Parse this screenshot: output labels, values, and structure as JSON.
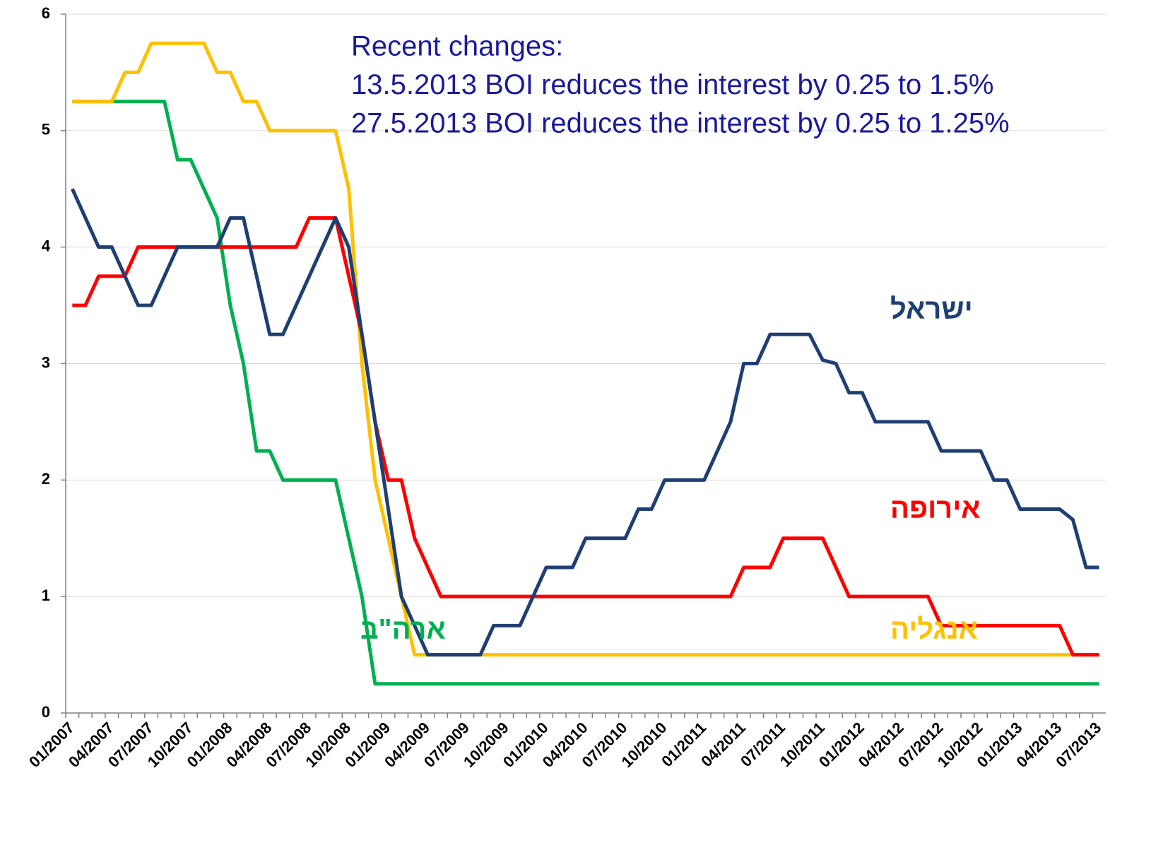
{
  "chart_data": {
    "type": "line",
    "categories": [
      "01/2007",
      null,
      null,
      "04/2007",
      null,
      null,
      "07/2007",
      null,
      null,
      "10/2007",
      null,
      null,
      "01/2008",
      null,
      null,
      "04/2008",
      null,
      null,
      "07/2008",
      null,
      null,
      "10/2008",
      null,
      null,
      "01/2009",
      null,
      null,
      "04/2009",
      null,
      null,
      "07/2009",
      null,
      null,
      "10/2009",
      null,
      null,
      "01/2010",
      null,
      null,
      "04/2010",
      null,
      null,
      "07/2010",
      null,
      null,
      "10/2010",
      null,
      null,
      "01/2011",
      null,
      null,
      "04/2011",
      null,
      null,
      "07/2011",
      null,
      null,
      "10/2011",
      null,
      null,
      "01/2012",
      null,
      null,
      "04/2012",
      null,
      null,
      "07/2012",
      null,
      null,
      "10/2012",
      null,
      null,
      "01/2013",
      null,
      null,
      "04/2013",
      null,
      null,
      "07/2013"
    ],
    "series": [
      {
        "name": "ישראל",
        "color": "#1f3f73",
        "values": [
          4.5,
          4.25,
          4,
          4,
          3.75,
          3.5,
          3.5,
          3.75,
          4,
          4,
          4,
          4,
          4.25,
          4.25,
          3.75,
          3.25,
          3.25,
          3.5,
          3.75,
          4,
          4.25,
          4,
          3.25,
          2.5,
          1.75,
          1,
          0.75,
          0.5,
          0.5,
          0.5,
          0.5,
          0.5,
          0.75,
          0.75,
          0.75,
          1,
          1.25,
          1.25,
          1.25,
          1.5,
          1.5,
          1.5,
          1.5,
          1.75,
          1.75,
          2,
          2,
          2,
          2,
          2.25,
          2.5,
          3,
          3,
          3.25,
          3.25,
          3.25,
          3.25,
          3.03,
          3,
          2.75,
          2.75,
          2.5,
          2.5,
          2.5,
          2.5,
          2.5,
          2.25,
          2.25,
          2.25,
          2.25,
          2,
          2,
          1.75,
          1.75,
          1.75,
          1.75,
          1.66,
          1.25,
          1.25
        ]
      },
      {
        "name": "אירופה",
        "color": "#ff0000",
        "values": [
          3.5,
          3.5,
          3.75,
          3.75,
          3.75,
          4,
          4,
          4,
          4,
          4,
          4,
          4,
          4,
          4,
          4,
          4,
          4,
          4,
          4.25,
          4.25,
          4.25,
          3.75,
          3.25,
          2.5,
          2,
          2,
          1.5,
          1.25,
          1,
          1,
          1,
          1,
          1,
          1,
          1,
          1,
          1,
          1,
          1,
          1,
          1,
          1,
          1,
          1,
          1,
          1,
          1,
          1,
          1,
          1,
          1,
          1.25,
          1.25,
          1.25,
          1.5,
          1.5,
          1.5,
          1.5,
          1.25,
          1,
          1,
          1,
          1,
          1,
          1,
          1,
          0.75,
          0.75,
          0.75,
          0.75,
          0.75,
          0.75,
          0.75,
          0.75,
          0.75,
          0.75,
          0.5,
          0.5,
          0.5
        ]
      },
      {
        "name": "אנגליה",
        "color": "#ffc000",
        "values": [
          5.25,
          5.25,
          5.25,
          5.25,
          5.5,
          5.5,
          5.75,
          5.75,
          5.75,
          5.75,
          5.75,
          5.5,
          5.5,
          5.25,
          5.25,
          5,
          5,
          5,
          5,
          5,
          5,
          4.5,
          3,
          2,
          1.5,
          1,
          0.5,
          0.5,
          0.5,
          0.5,
          0.5,
          0.5,
          0.5,
          0.5,
          0.5,
          0.5,
          0.5,
          0.5,
          0.5,
          0.5,
          0.5,
          0.5,
          0.5,
          0.5,
          0.5,
          0.5,
          0.5,
          0.5,
          0.5,
          0.5,
          0.5,
          0.5,
          0.5,
          0.5,
          0.5,
          0.5,
          0.5,
          0.5,
          0.5,
          0.5,
          0.5,
          0.5,
          0.5,
          0.5,
          0.5,
          0.5,
          0.5,
          0.5,
          0.5,
          0.5,
          0.5,
          0.5,
          0.5,
          0.5,
          0.5,
          0.5,
          0.5,
          0.5,
          0.5
        ]
      },
      {
        "name": "ארה\"ב",
        "color": "#00b050",
        "values": [
          5.25,
          5.25,
          5.25,
          5.25,
          5.25,
          5.25,
          5.25,
          5.25,
          4.75,
          4.75,
          4.5,
          4.25,
          3.5,
          3,
          2.25,
          2.25,
          2,
          2,
          2,
          2,
          2,
          1.5,
          1,
          0.25,
          0.25,
          0.25,
          0.25,
          0.25,
          0.25,
          0.25,
          0.25,
          0.25,
          0.25,
          0.25,
          0.25,
          0.25,
          0.25,
          0.25,
          0.25,
          0.25,
          0.25,
          0.25,
          0.25,
          0.25,
          0.25,
          0.25,
          0.25,
          0.25,
          0.25,
          0.25,
          0.25,
          0.25,
          0.25,
          0.25,
          0.25,
          0.25,
          0.25,
          0.25,
          0.25,
          0.25,
          0.25,
          0.25,
          0.25,
          0.25,
          0.25,
          0.25,
          0.25,
          0.25,
          0.25,
          0.25,
          0.25,
          0.25,
          0.25,
          0.25,
          0.25,
          0.25,
          0.25,
          0.25,
          0.25
        ]
      }
    ],
    "annotations": [
      "Recent changes:",
      "13.5.2013 BOI reduces the interest by 0.25 to 1.5%",
      "27.5.2013 BOI reduces the interest by 0.25 to 1.25%"
    ],
    "ylim": [
      0,
      6
    ],
    "yticks": [
      0,
      1,
      2,
      3,
      4,
      5,
      6
    ],
    "grid": true
  }
}
